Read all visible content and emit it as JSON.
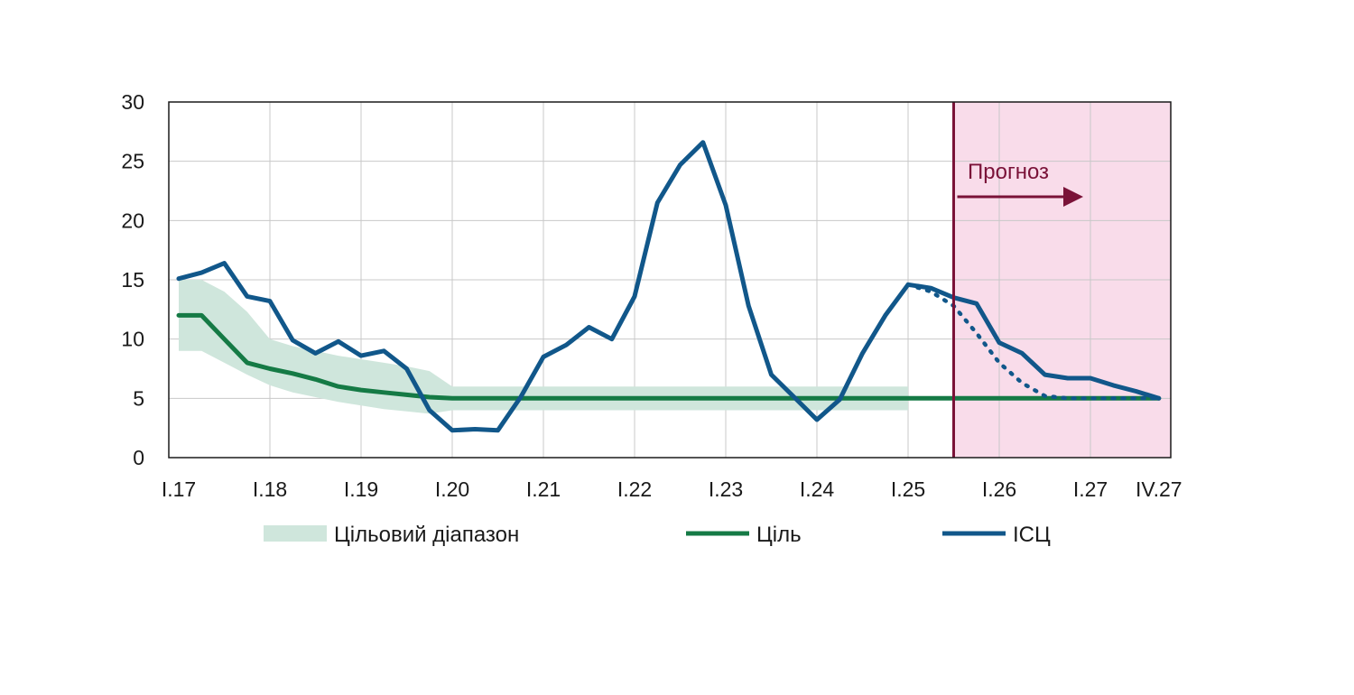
{
  "chart_data": {
    "type": "line",
    "title": "",
    "xlabel": "",
    "ylabel": "",
    "ylim": [
      0,
      30
    ],
    "yticks": [
      "0",
      "5",
      "10",
      "15",
      "20",
      "25",
      "30"
    ],
    "x_tick_labels": [
      "I.17",
      "I.18",
      "I.19",
      "I.20",
      "I.21",
      "I.22",
      "I.23",
      "I.24",
      "I.25",
      "I.26",
      "I.27",
      "IV.27"
    ],
    "x_tick_index": [
      0,
      4,
      8,
      12,
      16,
      20,
      24,
      28,
      32,
      36,
      40,
      43
    ],
    "forecast_start_index": 34,
    "forecast_label": "Прогноз",
    "grid": true,
    "legend_position": "bottom",
    "series": [
      {
        "name": "Цільовий діапазон",
        "kind": "band",
        "color": "#cfe6dc",
        "lower": [
          9,
          9,
          8,
          7,
          6.1,
          5.5,
          5.1,
          4.7,
          4.4,
          4.1,
          3.9,
          3.7,
          4,
          4,
          4,
          4,
          4,
          4,
          4,
          4,
          4,
          4,
          4,
          4,
          4,
          4,
          4,
          4,
          4,
          4,
          4,
          4,
          4
        ],
        "upper": [
          15,
          15,
          14,
          12.3,
          10,
          9.4,
          9,
          8.6,
          8.3,
          8,
          7.7,
          7.3,
          6,
          6,
          6,
          6,
          6,
          6,
          6,
          6,
          6,
          6,
          6,
          6,
          6,
          6,
          6,
          6,
          6,
          6,
          6,
          6,
          6
        ]
      },
      {
        "name": "Ціль",
        "kind": "line",
        "color": "#157a45",
        "values": [
          12,
          12,
          10,
          8,
          7.5,
          7.1,
          6.6,
          6.0,
          5.7,
          5.5,
          5.3,
          5.1,
          5,
          5,
          5,
          5,
          5,
          5,
          5,
          5,
          5,
          5,
          5,
          5,
          5,
          5,
          5,
          5,
          5,
          5,
          5,
          5,
          5,
          5,
          5,
          5,
          5,
          5,
          5,
          5,
          5,
          5,
          5,
          5
        ]
      },
      {
        "name": "ІСЦ",
        "kind": "line",
        "color": "#11578a",
        "values": [
          15.1,
          15.6,
          16.4,
          13.6,
          13.2,
          9.9,
          8.8,
          9.8,
          8.6,
          9.0,
          7.5,
          4.0,
          2.3,
          2.4,
          2.3,
          5.1,
          8.5,
          9.5,
          11.0,
          10.0,
          13.6,
          21.5,
          24.7,
          26.6,
          21.3,
          12.8,
          7.0,
          5.1,
          3.2,
          4.9,
          8.8,
          12.0,
          14.6,
          14.3,
          13.5,
          13.0,
          9.7,
          8.8,
          7.0,
          6.7,
          6.7,
          6.1,
          5.6,
          5.0
        ]
      },
      {
        "name": "",
        "kind": "dotted",
        "color": "#11578a",
        "x_start_index": 32,
        "values": [
          14.6,
          14.0,
          12.8,
          10.5,
          8.0,
          6.3,
          5.2,
          5.0,
          5.0,
          5.0,
          5.0,
          5.0
        ]
      }
    ],
    "legend": [
      "Цільовий діапазон",
      "Ціль",
      "ІСЦ"
    ]
  },
  "colors": {
    "forecast_bg": "#f9dcea",
    "forecast_line": "#7a1238",
    "grid": "#c8c8c8",
    "axis": "#1a1a1a"
  }
}
